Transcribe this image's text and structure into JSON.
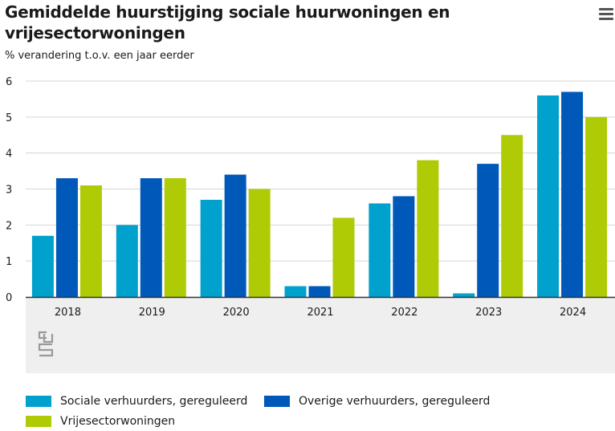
{
  "header": {
    "title": "Gemiddelde huurstijging sociale huurwoningen en vrijesectorwoningen",
    "subtitle": "% verandering t.o.v. een jaar eerder",
    "menu_icon": "hamburger-menu-icon"
  },
  "logo": {
    "icon": "cbs-logo-icon"
  },
  "colors": {
    "sociale": "#00a1cd",
    "overige": "#0058b8",
    "vrije": "#afcb05",
    "grid": "#d4d4d4",
    "axis_text": "#1a1a1a",
    "footer_band": "#efefef"
  },
  "chart_data": {
    "type": "bar",
    "categories": [
      "2018",
      "2019",
      "2020",
      "2021",
      "2022",
      "2023",
      "2024"
    ],
    "series": [
      {
        "name": "Sociale verhuurders, gereguleerd",
        "values": [
          1.7,
          2.0,
          2.7,
          0.3,
          2.6,
          0.1,
          5.6
        ]
      },
      {
        "name": "Overige verhuurders, gereguleerd",
        "values": [
          3.3,
          3.3,
          3.4,
          0.3,
          2.8,
          3.7,
          5.7
        ]
      },
      {
        "name": "Vrijesectorwoningen",
        "values": [
          3.1,
          3.3,
          3.0,
          2.2,
          3.8,
          4.5,
          5.0
        ]
      }
    ],
    "y_ticks": [
      "0",
      "1",
      "2",
      "3",
      "4",
      "5",
      "6"
    ],
    "ylim": [
      0,
      6
    ],
    "grid": true,
    "legend_position": "bottom"
  }
}
